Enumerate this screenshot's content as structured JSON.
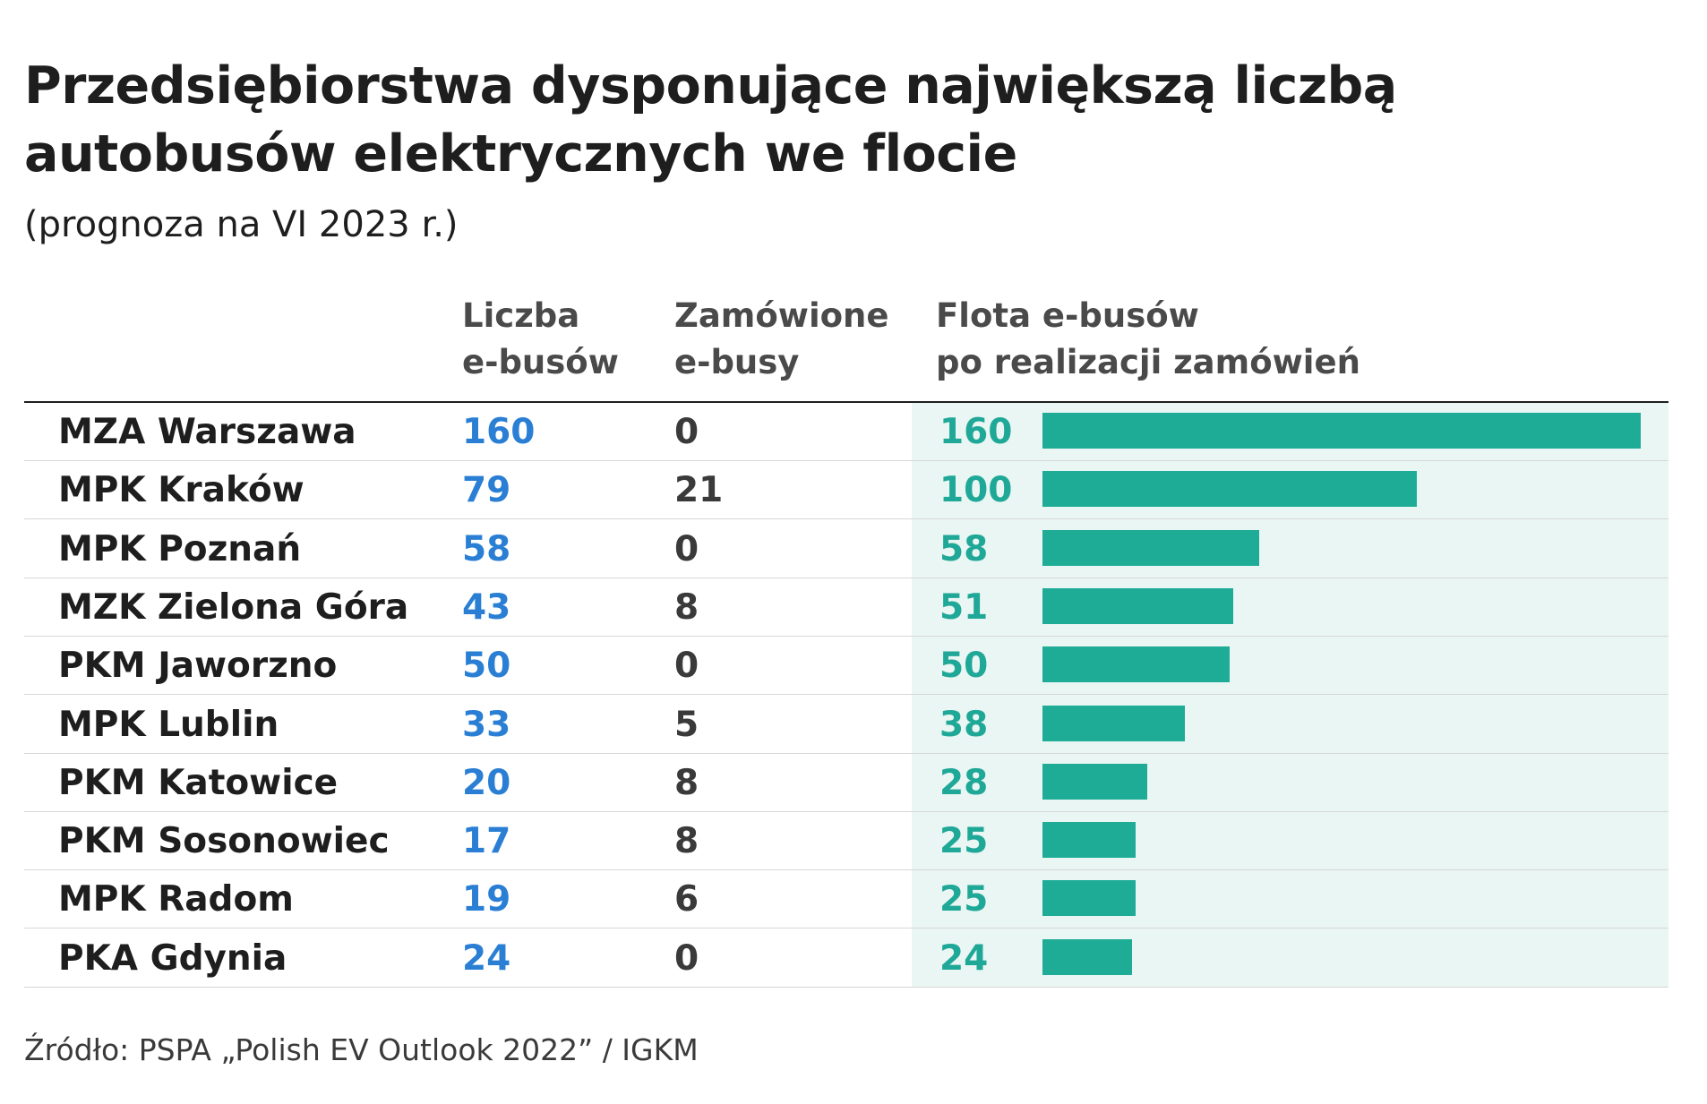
{
  "title_line1": "Przedsiębiorstwa dysponujące największą liczbą",
  "title_line2": "autobusów elektrycznych we flocie",
  "subtitle": "(prognoza na VI 2023 r.)",
  "columns": {
    "count": {
      "line1": "Liczba",
      "line2": "e-busów"
    },
    "ordered": {
      "line1": "Zamówione",
      "line2": "e-busy"
    },
    "fleet": {
      "line1": "Flota e-busów",
      "line2": "po realizacji zamówień"
    }
  },
  "rows": [
    {
      "name": "MZA Warszawa",
      "count": "160",
      "ordered": "0",
      "fleet": "160"
    },
    {
      "name": "MPK Kraków",
      "count": "79",
      "ordered": "21",
      "fleet": "100"
    },
    {
      "name": "MPK Poznań",
      "count": "58",
      "ordered": "0",
      "fleet": "58"
    },
    {
      "name": "MZK Zielona Góra",
      "count": "43",
      "ordered": "8",
      "fleet": "51"
    },
    {
      "name": "PKM Jaworzno",
      "count": "50",
      "ordered": "0",
      "fleet": "50"
    },
    {
      "name": "MPK Lublin",
      "count": "33",
      "ordered": "5",
      "fleet": "38"
    },
    {
      "name": "PKM Katowice",
      "count": "20",
      "ordered": "8",
      "fleet": "28"
    },
    {
      "name": "PKM Sosonowiec",
      "count": "17",
      "ordered": "8",
      "fleet": "25"
    },
    {
      "name": "MPK Radom",
      "count": "19",
      "ordered": "6",
      "fleet": "25"
    },
    {
      "name": "PKA Gdynia",
      "count": "24",
      "ordered": "0",
      "fleet": "24"
    }
  ],
  "source": "Źródło: PSPA „Polish EV Outlook 2022” / IGKM",
  "colors": {
    "count_text": "#2a7fd4",
    "fleet_text": "#1fa897",
    "bar": "#1fac97",
    "fleet_background": "#eaf6f3"
  },
  "chart_data": {
    "type": "bar",
    "orientation": "horizontal",
    "categories": [
      "MZA Warszawa",
      "MPK Kraków",
      "MPK Poznań",
      "MZK Zielona Góra",
      "PKM Jaworzno",
      "MPK Lublin",
      "PKM Katowice",
      "PKM Sosonowiec",
      "MPK Radom",
      "PKA Gdynia"
    ],
    "series": [
      {
        "name": "Flota e-busów po realizacji zamówień",
        "values": [
          160,
          100,
          58,
          51,
          50,
          38,
          28,
          25,
          25,
          24
        ]
      }
    ],
    "xlim": [
      0,
      160
    ]
  }
}
